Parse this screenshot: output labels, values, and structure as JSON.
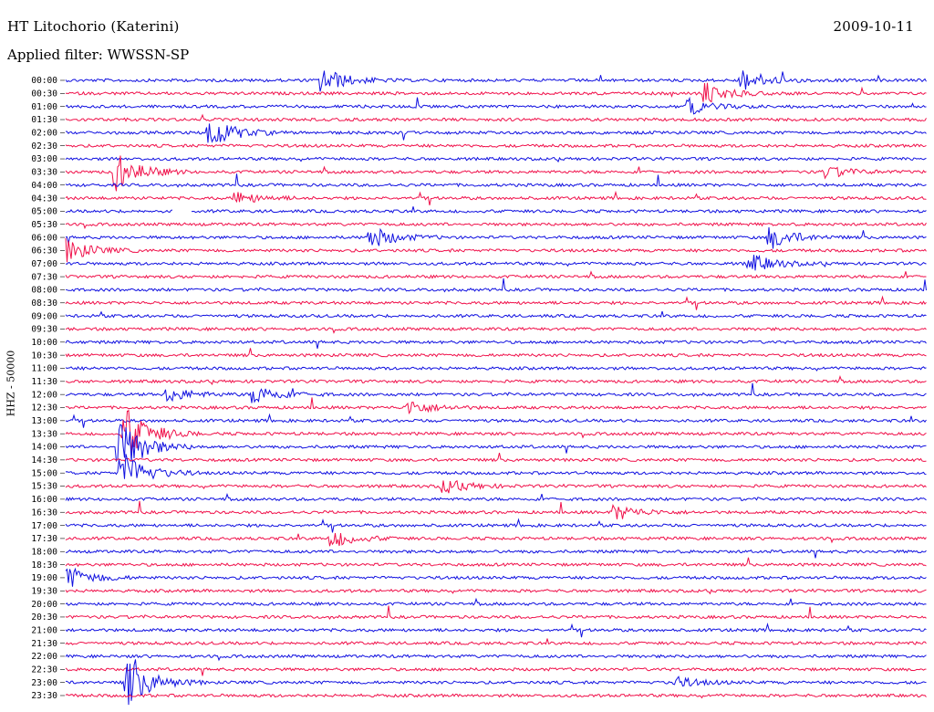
{
  "header": {
    "station": "HT Litochorio (Katerini)",
    "date": "2009-10-11",
    "filter": "Applied filter: WWSSN-SP"
  },
  "chart_data": {
    "type": "line",
    "title": "HT Litochorio (Katerini)",
    "date": "2009-10-11",
    "filter": "WWSSN-SP",
    "ylabel": "HHZ - 50000",
    "row_times": [
      "00:00",
      "00:30",
      "01:00",
      "01:30",
      "02:00",
      "02:30",
      "03:00",
      "03:30",
      "04:00",
      "04:30",
      "05:00",
      "05:30",
      "06:00",
      "06:30",
      "07:00",
      "07:30",
      "08:00",
      "08:30",
      "09:00",
      "09:30",
      "10:00",
      "10:30",
      "11:00",
      "11:30",
      "12:00",
      "12:30",
      "13:00",
      "13:30",
      "14:00",
      "14:30",
      "15:00",
      "15:30",
      "16:00",
      "16:30",
      "17:00",
      "17:30",
      "18:00",
      "18:30",
      "19:00",
      "19:30",
      "20:00",
      "20:30",
      "21:00",
      "21:30",
      "22:00",
      "22:30",
      "23:00",
      "23:30"
    ],
    "colors": [
      "#1010e0",
      "#f0104a"
    ],
    "events": [
      {
        "row": 0,
        "x": 0.3,
        "amp": 1.0
      },
      {
        "row": 0,
        "x": 0.785,
        "amp": 0.9
      },
      {
        "row": 1,
        "x": 0.745,
        "amp": 0.8
      },
      {
        "row": 2,
        "x": 0.725,
        "amp": 0.6
      },
      {
        "row": 4,
        "x": 0.168,
        "amp": 1.3
      },
      {
        "row": 7,
        "x": 0.06,
        "amp": 1.5
      },
      {
        "row": 7,
        "x": 0.883,
        "amp": 0.5
      },
      {
        "row": 9,
        "x": 0.2,
        "amp": 0.5
      },
      {
        "row": 12,
        "x": 0.355,
        "amp": 0.9
      },
      {
        "row": 12,
        "x": 0.82,
        "amp": 0.9
      },
      {
        "row": 13,
        "x": 0.0,
        "amp": 1.0
      },
      {
        "row": 14,
        "x": 0.795,
        "amp": 0.8
      },
      {
        "row": 24,
        "x": 0.12,
        "amp": 0.6
      },
      {
        "row": 24,
        "x": 0.22,
        "amp": 0.8
      },
      {
        "row": 25,
        "x": 0.4,
        "amp": 0.6
      },
      {
        "row": 27,
        "x": 0.07,
        "amp": 2.2
      },
      {
        "row": 28,
        "x": 0.063,
        "amp": 2.4
      },
      {
        "row": 30,
        "x": 0.065,
        "amp": 1.8
      },
      {
        "row": 31,
        "x": 0.44,
        "amp": 0.6
      },
      {
        "row": 33,
        "x": 0.64,
        "amp": 0.6
      },
      {
        "row": 35,
        "x": 0.31,
        "amp": 0.7
      },
      {
        "row": 38,
        "x": 0.0,
        "amp": 1.0
      },
      {
        "row": 46,
        "x": 0.073,
        "amp": 2.0
      },
      {
        "row": 46,
        "x": 0.71,
        "amp": 0.4
      }
    ],
    "gap": {
      "row": 10,
      "start": 0.125,
      "end": 0.145
    }
  }
}
